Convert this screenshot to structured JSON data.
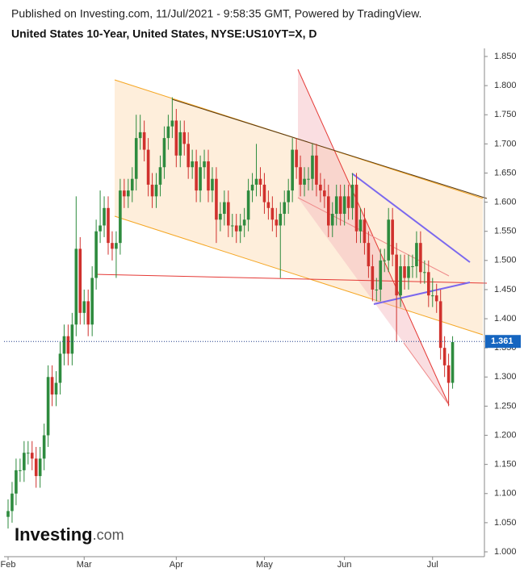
{
  "chart_data": {
    "type": "candlestick",
    "published": "Published on Investing.com, 11/Jul/2021 - 9:58:35 GMT, Powered by TradingView.",
    "title": "United States 10-Year, United States, NYSE:US10YT=X, D",
    "logo": "Investing",
    "logo_suffix": ".com",
    "last_value": 1.361,
    "up_color": "#2e8b3e",
    "down_color": "#d0312d",
    "categories": [
      "Feb",
      null,
      null,
      null,
      null,
      null,
      null,
      null,
      null,
      null,
      null,
      null,
      null,
      null,
      null,
      null,
      null,
      null,
      null,
      "Mar",
      null,
      null,
      null,
      null,
      null,
      null,
      null,
      null,
      null,
      null,
      null,
      null,
      null,
      null,
      null,
      null,
      null,
      null,
      null,
      null,
      null,
      null,
      "Apr",
      null,
      null,
      null,
      null,
      null,
      null,
      null,
      null,
      null,
      null,
      null,
      null,
      null,
      null,
      null,
      null,
      null,
      null,
      null,
      null,
      null,
      "May",
      null,
      null,
      null,
      null,
      null,
      null,
      null,
      null,
      null,
      null,
      null,
      null,
      null,
      null,
      null,
      null,
      null,
      null,
      null,
      "Jun",
      null,
      null,
      null,
      null,
      null,
      null,
      null,
      null,
      null,
      null,
      null,
      null,
      null,
      null,
      null,
      null,
      null,
      null,
      null,
      null,
      null,
      "Jul",
      null,
      null,
      null,
      null,
      null
    ],
    "open": [
      1.06,
      1.07,
      1.1,
      1.14,
      1.14,
      1.17,
      1.17,
      1.16,
      1.13,
      1.16,
      1.2,
      1.3,
      1.27,
      1.29,
      1.34,
      1.37,
      1.34,
      1.39,
      1.52,
      1.41,
      1.43,
      1.39,
      1.47,
      1.55,
      1.56,
      1.59,
      1.53,
      1.52,
      1.53,
      1.62,
      1.61,
      1.62,
      1.64,
      1.71,
      1.72,
      1.69,
      1.63,
      1.61,
      1.63,
      1.66,
      1.71,
      1.73,
      1.74,
      1.68,
      1.72,
      1.7,
      1.66,
      1.67,
      1.62,
      1.66,
      1.67,
      1.62,
      1.64,
      1.57,
      1.58,
      1.6,
      1.56,
      1.56,
      1.55,
      1.56,
      1.57,
      1.62,
      1.63,
      1.64,
      1.63,
      1.6,
      1.59,
      1.57,
      1.56,
      1.58,
      1.6,
      1.62,
      1.69,
      1.66,
      1.63,
      1.64,
      1.64,
      1.68,
      1.63,
      1.62,
      1.61,
      1.56,
      1.58,
      1.61,
      1.58,
      1.61,
      1.59,
      1.63,
      1.55,
      1.57,
      1.53,
      1.49,
      1.45,
      1.45,
      1.5,
      1.5,
      1.57,
      1.51,
      1.44,
      1.49,
      1.47,
      1.49,
      1.49,
      1.53,
      1.48,
      1.48,
      1.44,
      1.44,
      1.43,
      1.35,
      1.32,
      1.29
    ],
    "high": [
      1.09,
      1.12,
      1.16,
      1.16,
      1.19,
      1.19,
      1.19,
      1.18,
      1.18,
      1.22,
      1.32,
      1.32,
      1.31,
      1.36,
      1.39,
      1.39,
      1.41,
      1.61,
      1.54,
      1.45,
      1.45,
      1.49,
      1.57,
      1.62,
      1.61,
      1.61,
      1.55,
      1.55,
      1.64,
      1.64,
      1.64,
      1.66,
      1.75,
      1.75,
      1.74,
      1.71,
      1.65,
      1.65,
      1.68,
      1.73,
      1.75,
      1.78,
      1.76,
      1.74,
      1.74,
      1.72,
      1.69,
      1.69,
      1.68,
      1.69,
      1.69,
      1.66,
      1.66,
      1.6,
      1.62,
      1.62,
      1.58,
      1.58,
      1.58,
      1.59,
      1.64,
      1.65,
      1.7,
      1.66,
      1.65,
      1.62,
      1.61,
      1.59,
      1.6,
      1.62,
      1.64,
      1.71,
      1.71,
      1.68,
      1.66,
      1.66,
      1.7,
      1.7,
      1.65,
      1.64,
      1.63,
      1.6,
      1.63,
      1.63,
      1.63,
      1.63,
      1.65,
      1.65,
      1.59,
      1.59,
      1.55,
      1.51,
      1.47,
      1.52,
      1.52,
      1.59,
      1.59,
      1.53,
      1.51,
      1.51,
      1.51,
      1.51,
      1.55,
      1.55,
      1.5,
      1.5,
      1.47,
      1.46,
      1.45,
      1.37,
      1.34,
      1.37
    ],
    "low": [
      1.04,
      1.05,
      1.08,
      1.12,
      1.12,
      1.15,
      1.14,
      1.11,
      1.11,
      1.14,
      1.18,
      1.25,
      1.25,
      1.27,
      1.32,
      1.32,
      1.32,
      1.37,
      1.39,
      1.39,
      1.37,
      1.37,
      1.45,
      1.53,
      1.54,
      1.51,
      1.5,
      1.47,
      1.51,
      1.59,
      1.59,
      1.6,
      1.62,
      1.69,
      1.67,
      1.61,
      1.59,
      1.59,
      1.61,
      1.64,
      1.69,
      1.71,
      1.66,
      1.66,
      1.68,
      1.64,
      1.64,
      1.6,
      1.6,
      1.64,
      1.6,
      1.6,
      1.53,
      1.55,
      1.56,
      1.54,
      1.54,
      1.53,
      1.53,
      1.54,
      1.55,
      1.6,
      1.61,
      1.61,
      1.58,
      1.57,
      1.55,
      1.54,
      1.47,
      1.56,
      1.58,
      1.6,
      1.64,
      1.61,
      1.61,
      1.62,
      1.62,
      1.61,
      1.6,
      1.59,
      1.54,
      1.54,
      1.56,
      1.56,
      1.56,
      1.57,
      1.57,
      1.53,
      1.53,
      1.51,
      1.47,
      1.43,
      1.43,
      1.43,
      1.48,
      1.48,
      1.49,
      1.36,
      1.42,
      1.45,
      1.45,
      1.47,
      1.47,
      1.46,
      1.46,
      1.42,
      1.42,
      1.41,
      1.33,
      1.3,
      1.25,
      1.28
    ],
    "close": [
      1.07,
      1.1,
      1.14,
      1.14,
      1.17,
      1.17,
      1.16,
      1.13,
      1.16,
      1.2,
      1.3,
      1.27,
      1.29,
      1.34,
      1.37,
      1.34,
      1.39,
      1.52,
      1.41,
      1.43,
      1.39,
      1.47,
      1.55,
      1.56,
      1.59,
      1.53,
      1.52,
      1.53,
      1.62,
      1.61,
      1.62,
      1.64,
      1.71,
      1.72,
      1.69,
      1.63,
      1.61,
      1.63,
      1.66,
      1.71,
      1.73,
      1.74,
      1.68,
      1.72,
      1.7,
      1.66,
      1.67,
      1.62,
      1.66,
      1.67,
      1.62,
      1.64,
      1.57,
      1.58,
      1.6,
      1.56,
      1.56,
      1.55,
      1.56,
      1.57,
      1.62,
      1.63,
      1.64,
      1.63,
      1.6,
      1.59,
      1.57,
      1.56,
      1.58,
      1.6,
      1.62,
      1.69,
      1.66,
      1.63,
      1.64,
      1.64,
      1.68,
      1.63,
      1.62,
      1.61,
      1.56,
      1.58,
      1.61,
      1.58,
      1.61,
      1.59,
      1.63,
      1.55,
      1.57,
      1.53,
      1.49,
      1.45,
      1.45,
      1.5,
      1.5,
      1.57,
      1.51,
      1.44,
      1.49,
      1.47,
      1.49,
      1.49,
      1.53,
      1.48,
      1.48,
      1.44,
      1.44,
      1.43,
      1.35,
      1.32,
      1.29,
      1.36
    ],
    "ylim": [
      1.0,
      1.85
    ],
    "yticks": [
      {
        "value": 1.0,
        "label": "1.000"
      },
      {
        "value": 1.05,
        "label": "1.050"
      },
      {
        "value": 1.1,
        "label": "1.100"
      },
      {
        "value": 1.15,
        "label": "1.150"
      },
      {
        "value": 1.2,
        "label": "1.200"
      },
      {
        "value": 1.25,
        "label": "1.250"
      },
      {
        "value": 1.3,
        "label": "1.300"
      },
      {
        "value": 1.35,
        "label": "1.350"
      },
      {
        "value": 1.4,
        "label": "1.400"
      },
      {
        "value": 1.45,
        "label": "1.450"
      },
      {
        "value": 1.5,
        "label": "1.500"
      },
      {
        "value": 1.55,
        "label": "1.550"
      },
      {
        "value": 1.6,
        "label": "1.600"
      },
      {
        "value": 1.65,
        "label": "1.650"
      },
      {
        "value": 1.7,
        "label": "1.700"
      },
      {
        "value": 1.75,
        "label": "1.750"
      },
      {
        "value": 1.8,
        "label": "1.800"
      },
      {
        "value": 1.85,
        "label": "1.850"
      }
    ]
  }
}
